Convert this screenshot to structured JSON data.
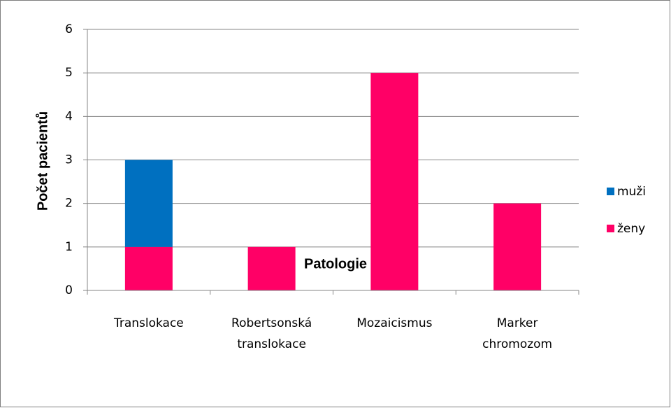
{
  "chart_data": {
    "type": "stacked_bar",
    "categories": [
      "Translokace",
      "Robertsonská translokace",
      "Mozaicismus",
      "Marker chromozom"
    ],
    "series": [
      {
        "name": "ženy",
        "color": "#ff0066",
        "values": [
          1,
          1,
          5,
          2
        ]
      },
      {
        "name": "muži",
        "color": "#0070c0",
        "values": [
          2,
          0,
          0,
          0
        ]
      }
    ],
    "x_label": "Patologie",
    "y_label": "Počet pacientů",
    "ylim": [
      0,
      6
    ],
    "yticks": [
      0,
      1,
      2,
      3,
      4,
      5,
      6
    ],
    "grid": true,
    "legend": "right"
  }
}
